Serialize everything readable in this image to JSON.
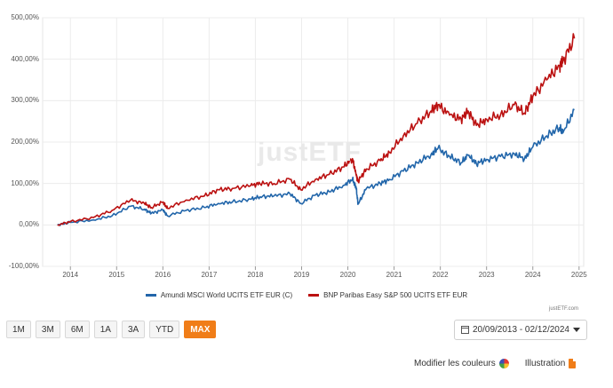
{
  "chart_data": {
    "type": "line",
    "ylim": [
      -100,
      500
    ],
    "xlim": [
      2013.4,
      2025.1
    ],
    "yticks": [
      "500,00%",
      "400,00%",
      "300,00%",
      "200,00%",
      "100,00%",
      "0,00%",
      "-100,00%"
    ],
    "ytick_values": [
      500,
      400,
      300,
      200,
      100,
      0,
      -100
    ],
    "xticks": [
      "2014",
      "2015",
      "2016",
      "2017",
      "2018",
      "2019",
      "2020",
      "2021",
      "2022",
      "2023",
      "2024",
      "2025"
    ],
    "xtick_values": [
      2014,
      2015,
      2016,
      2017,
      2018,
      2019,
      2020,
      2021,
      2022,
      2023,
      2024,
      2025
    ],
    "grid": true,
    "legend_placement": "bottom",
    "series": [
      {
        "name": "Amundi MSCI World UCITS ETF EUR (C)",
        "color": "#2266aa",
        "x": [
          2013.72,
          2014.0,
          2014.5,
          2014.9,
          2015.3,
          2015.6,
          2015.75,
          2016.0,
          2016.1,
          2016.5,
          2016.9,
          2017.2,
          2017.5,
          2017.9,
          2018.1,
          2018.4,
          2018.75,
          2018.98,
          2019.3,
          2019.6,
          2019.9,
          2020.1,
          2020.18,
          2020.22,
          2020.4,
          2020.7,
          2020.9,
          2021.2,
          2021.5,
          2021.8,
          2021.95,
          2022.2,
          2022.45,
          2022.6,
          2022.78,
          2023.0,
          2023.3,
          2023.6,
          2023.82,
          2024.0,
          2024.3,
          2024.58,
          2024.65,
          2024.9
        ],
        "values": [
          0,
          6,
          12,
          22,
          45,
          38,
          28,
          36,
          22,
          35,
          42,
          52,
          55,
          62,
          68,
          70,
          75,
          52,
          72,
          80,
          95,
          110,
          90,
          50,
          88,
          100,
          110,
          130,
          150,
          170,
          185,
          165,
          150,
          168,
          148,
          158,
          165,
          172,
          160,
          188,
          215,
          235,
          222,
          278
        ]
      },
      {
        "name": "BNP Paribas Easy S&P 500 UCITS ETF EUR",
        "color": "#bb1111",
        "x": [
          2013.72,
          2014.0,
          2014.5,
          2014.9,
          2015.3,
          2015.6,
          2015.75,
          2016.0,
          2016.1,
          2016.5,
          2016.9,
          2017.2,
          2017.5,
          2017.9,
          2018.1,
          2018.4,
          2018.75,
          2018.98,
          2019.3,
          2019.6,
          2019.9,
          2020.1,
          2020.18,
          2020.22,
          2020.4,
          2020.7,
          2020.9,
          2021.2,
          2021.5,
          2021.8,
          2021.95,
          2022.2,
          2022.45,
          2022.6,
          2022.78,
          2023.0,
          2023.3,
          2023.6,
          2023.82,
          2024.0,
          2024.3,
          2024.58,
          2024.65,
          2024.9
        ],
        "values": [
          0,
          8,
          18,
          35,
          60,
          52,
          42,
          55,
          40,
          60,
          70,
          85,
          88,
          95,
          100,
          100,
          110,
          85,
          110,
          122,
          140,
          160,
          120,
          105,
          135,
          155,
          175,
          215,
          245,
          275,
          290,
          265,
          255,
          275,
          240,
          255,
          265,
          290,
          270,
          310,
          350,
          385,
          395,
          450
        ]
      }
    ]
  },
  "watermark": "justETF",
  "credit": "justETF.com",
  "range_buttons": [
    "1M",
    "3M",
    "6M",
    "1A",
    "3A",
    "YTD",
    "MAX"
  ],
  "active_range": "MAX",
  "date_range": "20/09/2013 - 02/12/2024",
  "footer": {
    "colors_label": "Modifier les couleurs",
    "illustration_label": "Illustration"
  }
}
